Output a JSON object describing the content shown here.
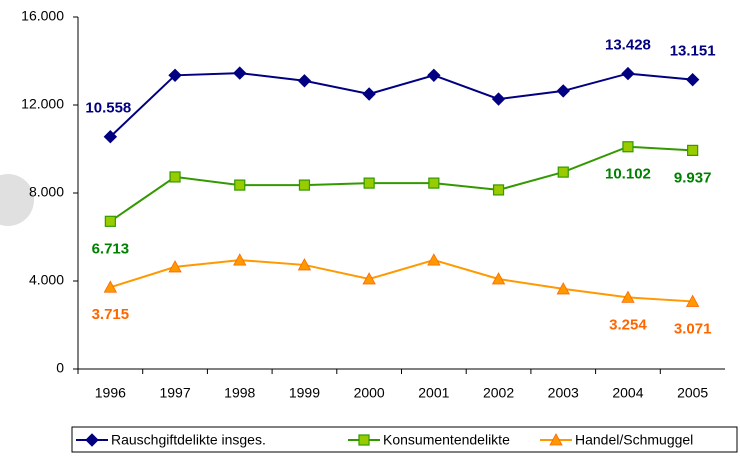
{
  "chart_data": {
    "type": "line",
    "categories": [
      "1996",
      "1997",
      "1998",
      "1999",
      "2000",
      "2001",
      "2002",
      "2003",
      "2004",
      "2005"
    ],
    "series": [
      {
        "name": "Rauschgiftdelikte insges.",
        "color": "#000080",
        "label_color": "#000080",
        "marker": "diamond",
        "values": [
          10558,
          13350,
          13450,
          13100,
          12500,
          13350,
          12270,
          12640,
          13428,
          13151
        ],
        "value_labels": [
          "10.558",
          null,
          null,
          null,
          null,
          null,
          null,
          null,
          "13.428",
          "13.151"
        ]
      },
      {
        "name": "Konsumentendelikte",
        "color": "#339900",
        "label_color": "#008000",
        "marker": "square",
        "values": [
          6713,
          8730,
          8360,
          8360,
          8450,
          8450,
          8140,
          8950,
          10102,
          9937
        ],
        "value_labels": [
          "6.713",
          null,
          null,
          null,
          null,
          null,
          null,
          null,
          "10.102",
          "9.937"
        ]
      },
      {
        "name": "Handel/Schmuggel",
        "color": "#ff9900",
        "label_color": "#ff6600",
        "marker": "triangle",
        "values": [
          3715,
          4640,
          4950,
          4730,
          4090,
          4950,
          4090,
          3640,
          3254,
          3071
        ],
        "value_labels": [
          "3.715",
          null,
          null,
          null,
          null,
          null,
          null,
          null,
          "3.254",
          "3.071"
        ]
      }
    ],
    "ylim": [
      0,
      16000
    ],
    "yticks": [
      0,
      {
        "value": 4000,
        "label": "4.000"
      },
      {
        "value": 8000,
        "label": "8.000"
      },
      {
        "value": 12000,
        "label": "12.000"
      },
      {
        "value": 16000,
        "label": "16.000"
      }
    ],
    "grid": false,
    "legend": "bottom"
  }
}
